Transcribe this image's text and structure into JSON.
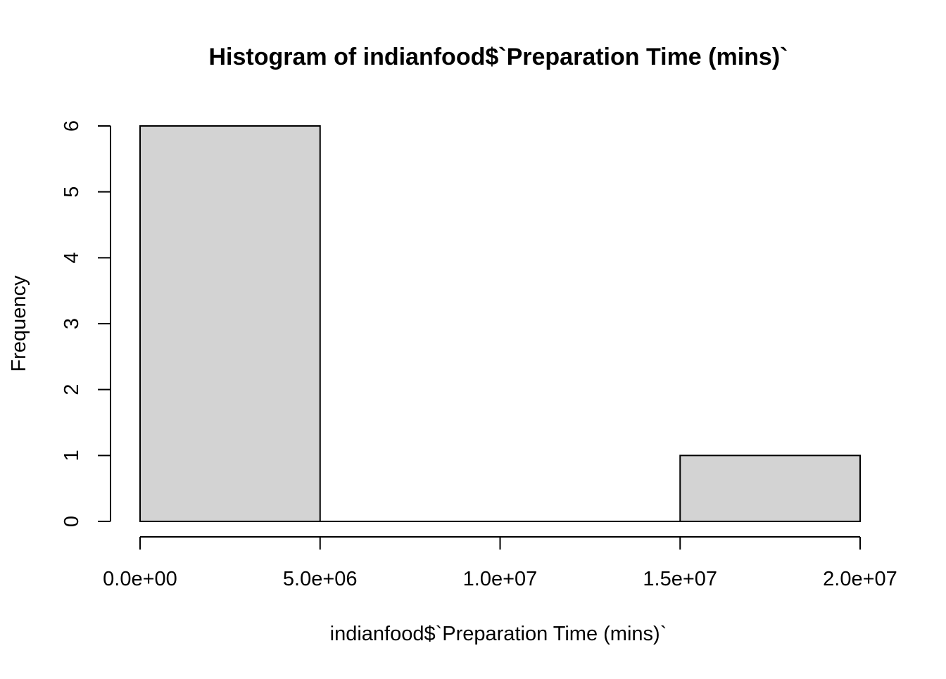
{
  "chart_data": {
    "type": "bar",
    "title": "Histogram of indianfood$`Preparation Time (mins)`",
    "xlabel": "indianfood$`Preparation Time (mins)`",
    "ylabel": "Frequency",
    "bins": [
      {
        "start": 0,
        "end": 5000000,
        "count": 6
      },
      {
        "start": 5000000,
        "end": 10000000,
        "count": 0
      },
      {
        "start": 10000000,
        "end": 15000000,
        "count": 0
      },
      {
        "start": 15000000,
        "end": 20000000,
        "count": 1
      }
    ],
    "xlim": [
      0,
      20000000
    ],
    "ylim": [
      0,
      6
    ],
    "x_ticks": [
      {
        "value": 0,
        "label": "0.0e+00"
      },
      {
        "value": 5000000,
        "label": "5.0e+06"
      },
      {
        "value": 10000000,
        "label": "1.0e+07"
      },
      {
        "value": 15000000,
        "label": "1.5e+07"
      },
      {
        "value": 20000000,
        "label": "2.0e+07"
      }
    ],
    "y_ticks": [
      {
        "value": 0,
        "label": "0"
      },
      {
        "value": 1,
        "label": "1"
      },
      {
        "value": 2,
        "label": "2"
      },
      {
        "value": 3,
        "label": "3"
      },
      {
        "value": 4,
        "label": "4"
      },
      {
        "value": 5,
        "label": "5"
      },
      {
        "value": 6,
        "label": "6"
      }
    ],
    "bar_color": "#d3d3d3",
    "grid": false,
    "legend": "none"
  }
}
